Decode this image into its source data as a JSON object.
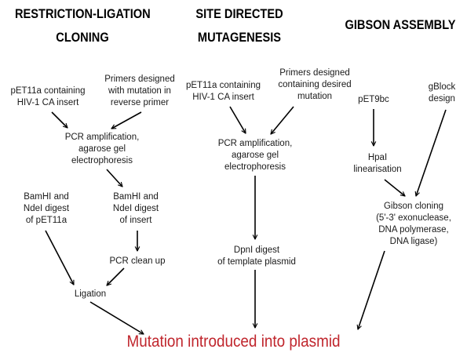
{
  "columns": [
    {
      "title_line1": "RESTRICTION-LIGATION",
      "title_line2": "CLONING",
      "nodes": {
        "plasmid": "pET11a containing\nHIV-1 CA insert",
        "primers": "Primers designed\nwith mutation in\nreverse primer",
        "pcr": "PCR amplification,\nagarose gel\nelectrophoresis",
        "vector_digest": "BamHI and\nNdeI digest\nof pET11a",
        "insert_digest": "BamHI and\nNdeI digest\nof insert",
        "cleanup": "PCR clean up",
        "ligation": "Ligation"
      }
    },
    {
      "title_line1": "SITE DIRECTED",
      "title_line2": "MUTAGENESIS",
      "nodes": {
        "plasmid": "pET11a containing\nHIV-1 CA insert",
        "primers": "Primers designed\ncontaining desired\nmutation",
        "pcr": "PCR amplification,\nagarose gel\nelectrophoresis",
        "digest": "DpnI digest\nof template plasmid"
      }
    },
    {
      "title_line1": "GIBSON ASSEMBLY",
      "nodes": {
        "vector": "pET9bc",
        "gblock": "gBlock\ndesign",
        "linearisation": "HpaI\nlinearisation",
        "cloning": "Gibson cloning\n(5'-3' exonuclease,\nDNA polymerase,\nDNA ligase)"
      }
    }
  ],
  "result": "Mutation introduced into plasmid",
  "colors": {
    "result_text": "#c0262d",
    "arrows": "#000000"
  }
}
